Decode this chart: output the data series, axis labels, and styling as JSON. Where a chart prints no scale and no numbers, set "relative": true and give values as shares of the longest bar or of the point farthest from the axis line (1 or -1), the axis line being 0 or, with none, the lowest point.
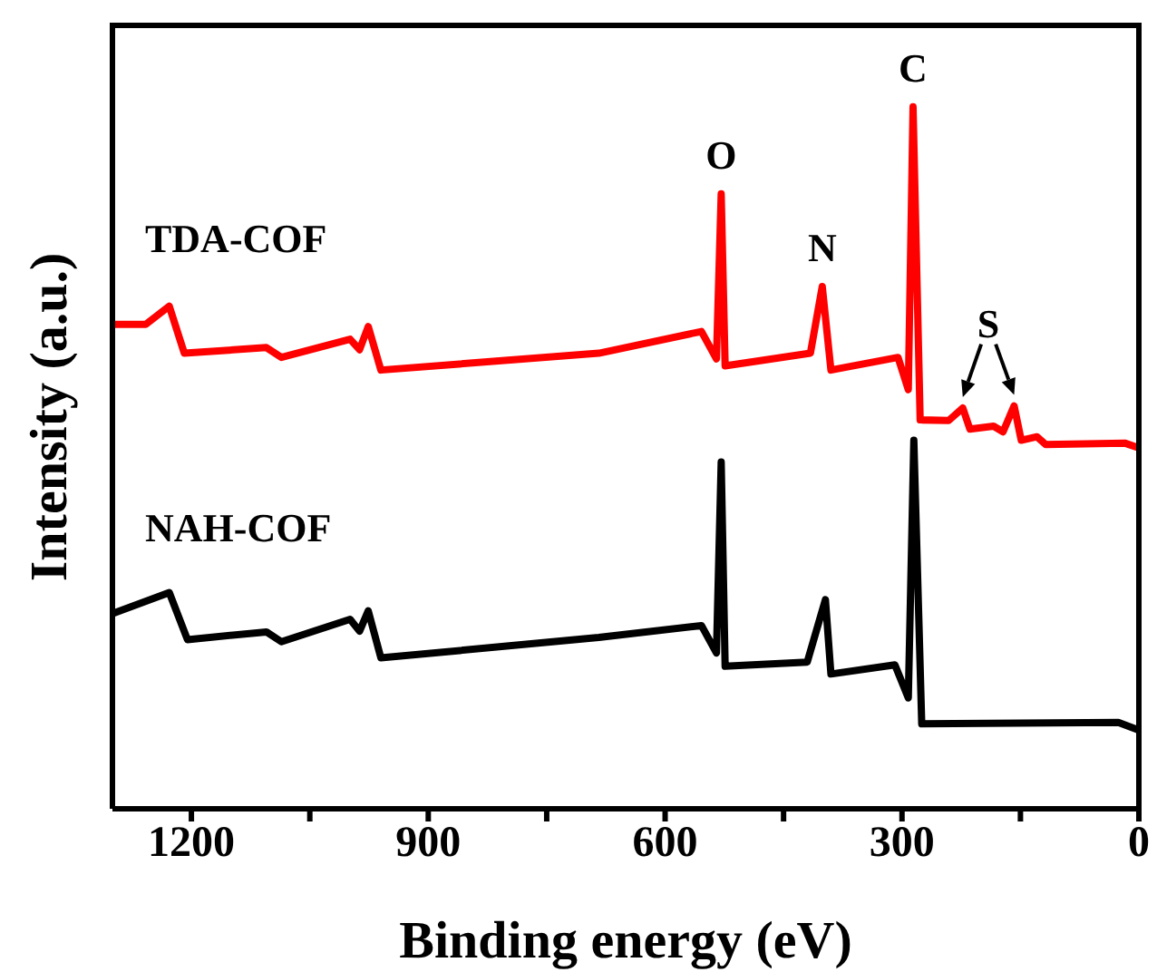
{
  "chart_data": {
    "type": "line",
    "relative": true,
    "xlabel": "Binding energy (eV)",
    "ylabel": "Intensity (a.u.)",
    "xlim": [
      1300,
      0
    ],
    "xticks": [
      1200,
      {
        "value": 1050,
        "label": null
      },
      900,
      {
        "value": 750,
        "label": null
      },
      600,
      {
        "value": 450,
        "label": null
      },
      300,
      {
        "value": 150,
        "label": null
      },
      0
    ],
    "grid": false,
    "legend": false,
    "marker": "none",
    "line_style": "solid",
    "series": [
      {
        "name": "TDA-COF",
        "color": "#ff0000",
        "x": [
          1300,
          1258,
          1228,
          1209,
          1105,
          1086,
          999,
          987,
          976,
          960,
          684,
          554,
          535,
          529,
          524,
          416,
          401,
          390,
          305,
          292,
          286,
          277,
          241,
          223,
          214,
          184,
          172,
          158,
          149,
          129,
          118,
          18,
          0
        ],
        "values": [
          0.69,
          0.69,
          0.716,
          0.649,
          0.657,
          0.643,
          0.669,
          0.654,
          0.687,
          0.625,
          0.649,
          0.68,
          0.641,
          0.876,
          0.631,
          0.649,
          0.744,
          0.625,
          0.643,
          0.597,
          1.0,
          0.554,
          0.553,
          0.571,
          0.541,
          0.545,
          0.537,
          0.574,
          0.525,
          0.53,
          0.519,
          0.521,
          0.514
        ]
      },
      {
        "name": "NAH-COF",
        "color": "#000000",
        "x": [
          1300,
          1228,
          1205,
          1105,
          1086,
          999,
          987,
          976,
          960,
          684,
          554,
          535,
          529,
          524,
          420,
          397,
          390,
          309,
          292,
          285,
          275,
          26,
          0
        ],
        "values": [
          0.278,
          0.308,
          0.241,
          0.252,
          0.238,
          0.27,
          0.253,
          0.282,
          0.215,
          0.244,
          0.261,
          0.222,
          0.494,
          0.203,
          0.209,
          0.298,
          0.192,
          0.205,
          0.158,
          0.525,
          0.121,
          0.123,
          0.112
        ]
      }
    ],
    "annotations": [
      {
        "text": "O",
        "x": 529,
        "y": 0.876
      },
      {
        "text": "N",
        "x": 401,
        "y": 0.744
      },
      {
        "text": "C",
        "x": 286,
        "y": 1.0
      },
      {
        "text": "S",
        "x": 223,
        "y": 0.571
      }
    ]
  }
}
